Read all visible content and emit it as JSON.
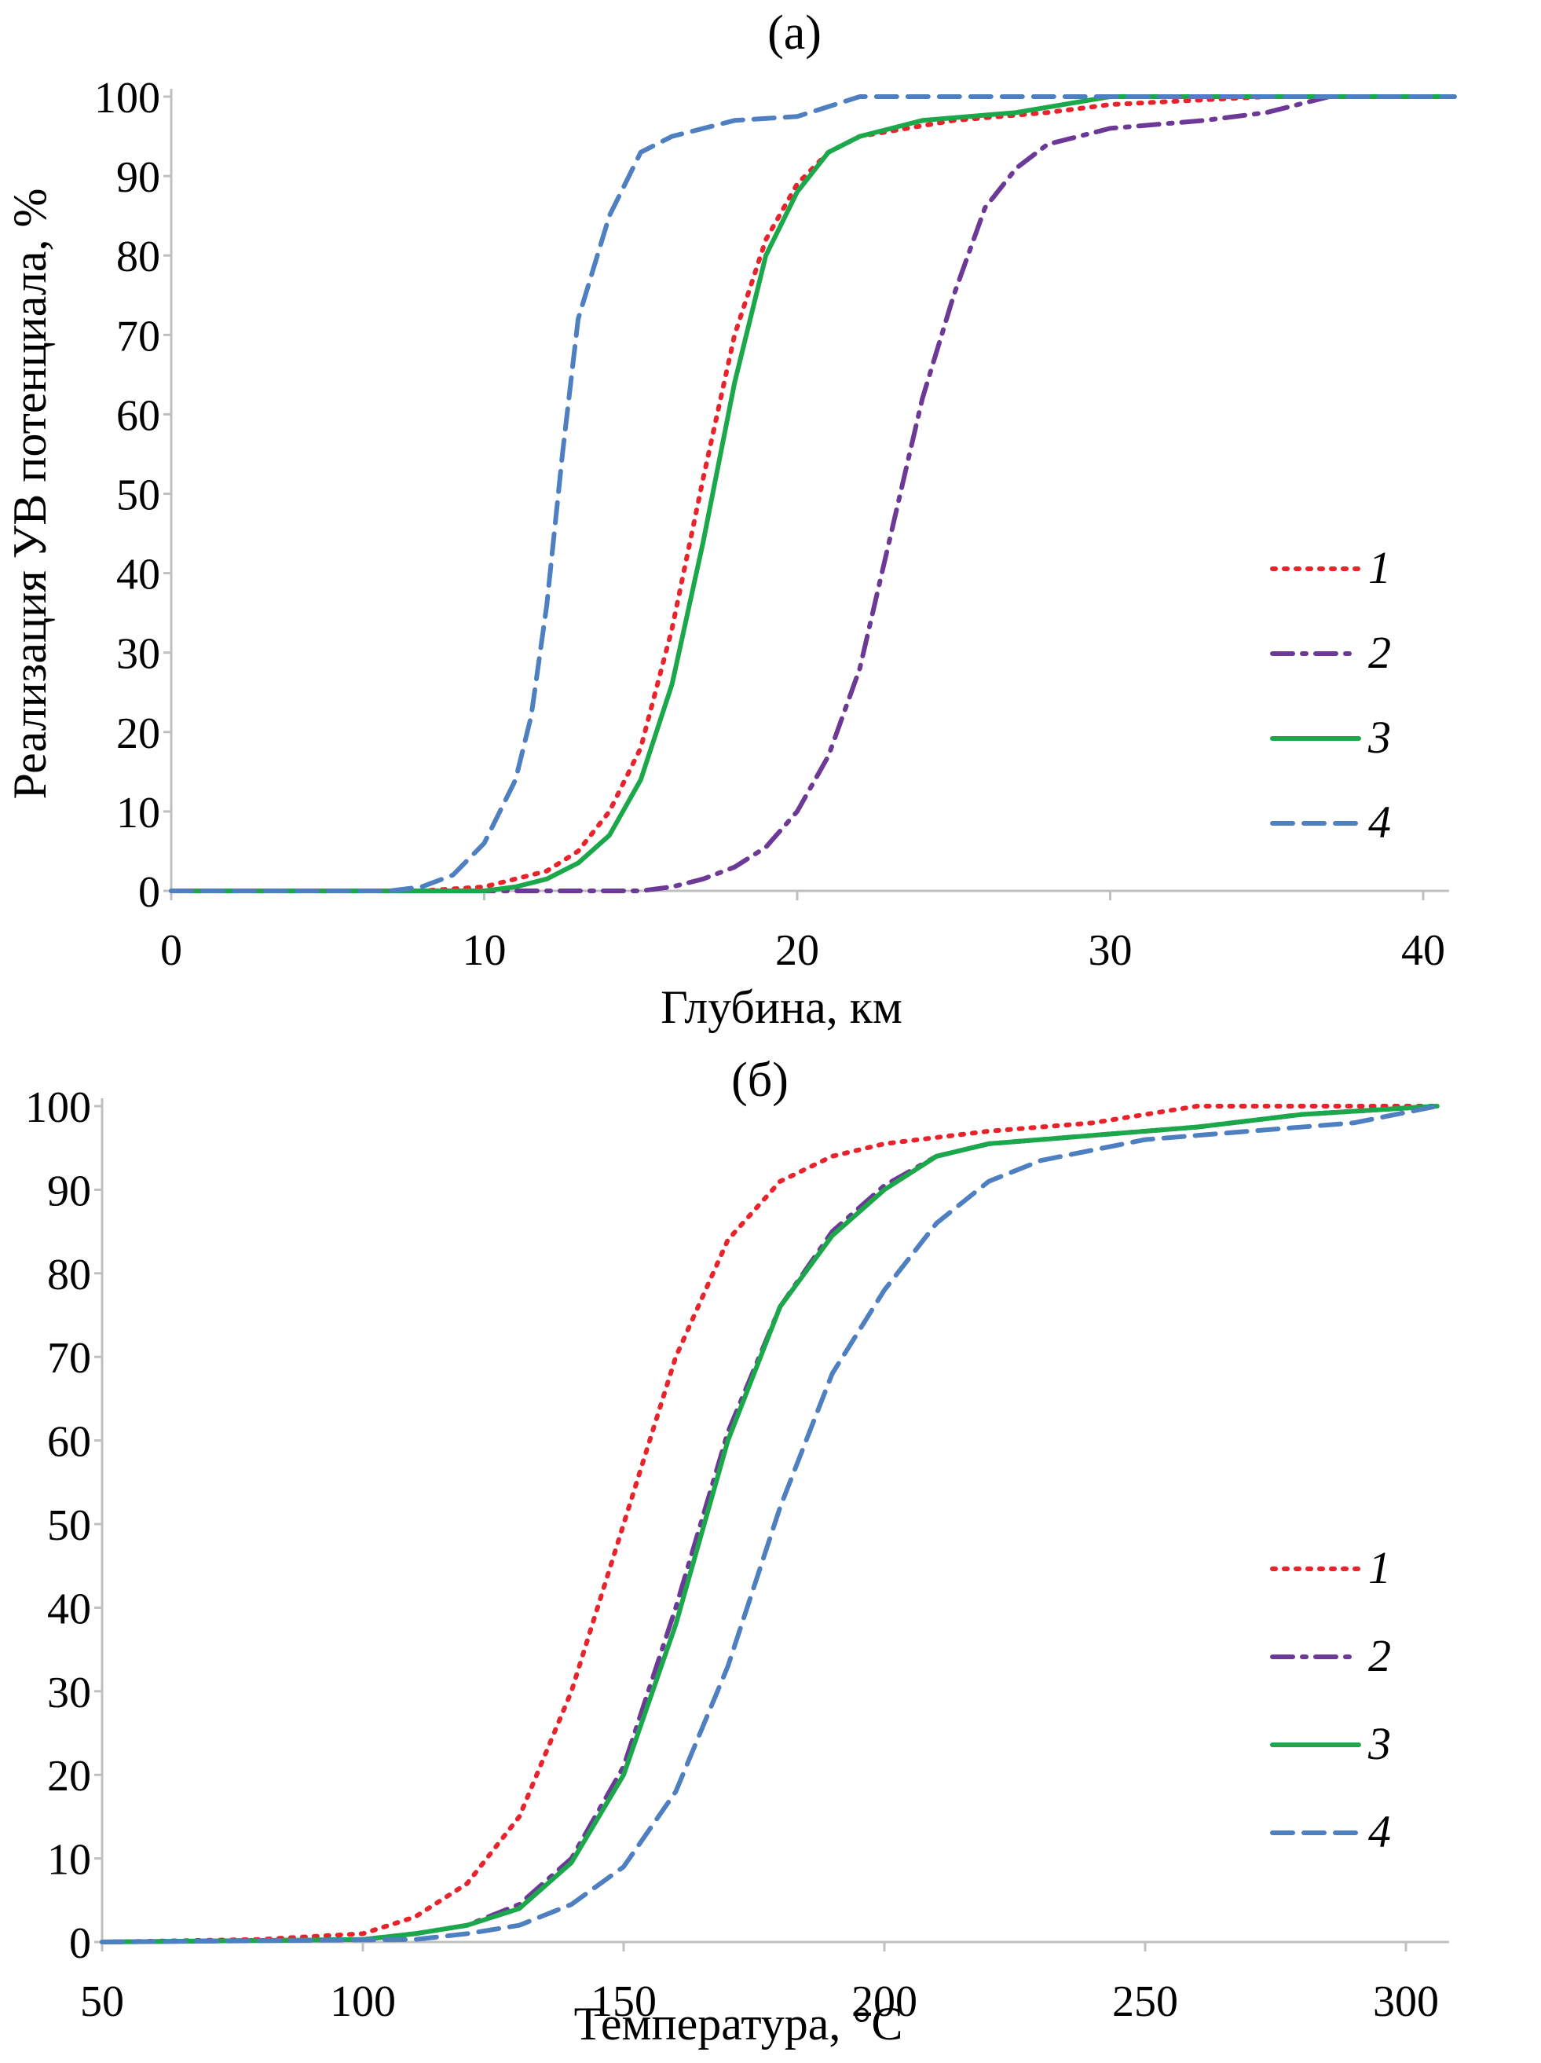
{
  "colors": {
    "series1": "#e8232b",
    "series2": "#6c3a96",
    "series3": "#1aa84a",
    "series4": "#4e7fc0",
    "axis": "#bfbfbf"
  },
  "chart_data": [
    {
      "id": "a",
      "type": "line",
      "title": "(а)",
      "xlabel": "Глубина, км",
      "ylabel": "Реализация УВ потенциала, %",
      "xlim": [
        0,
        40
      ],
      "ylim": [
        0,
        100
      ],
      "xticks": [
        0,
        10,
        20,
        30,
        40
      ],
      "yticks": [
        0,
        10,
        20,
        30,
        40,
        50,
        60,
        70,
        80,
        90,
        100
      ],
      "grid": false,
      "legend_position": "right",
      "series": [
        {
          "name": "1",
          "style": "dotted",
          "color_key": "series1",
          "points": [
            [
              0,
              0
            ],
            [
              8,
              0
            ],
            [
              10,
              0.5
            ],
            [
              12,
              2.5
            ],
            [
              13,
              5
            ],
            [
              14,
              10
            ],
            [
              15,
              18
            ],
            [
              16,
              33
            ],
            [
              17,
              52
            ],
            [
              18,
              70
            ],
            [
              19,
              82
            ],
            [
              20,
              89
            ],
            [
              21,
              93
            ],
            [
              22,
              95
            ],
            [
              25,
              97
            ],
            [
              28,
              98
            ],
            [
              30,
              99
            ],
            [
              35,
              100
            ],
            [
              41,
              100
            ]
          ]
        },
        {
          "name": "2",
          "style": "dashdot",
          "color_key": "series2",
          "points": [
            [
              0,
              0
            ],
            [
              15,
              0
            ],
            [
              16,
              0.5
            ],
            [
              17,
              1.5
            ],
            [
              18,
              3
            ],
            [
              19,
              5.5
            ],
            [
              20,
              10
            ],
            [
              21,
              17
            ],
            [
              22,
              28
            ],
            [
              23,
              45
            ],
            [
              24,
              62
            ],
            [
              25,
              75
            ],
            [
              26,
              86
            ],
            [
              27,
              91
            ],
            [
              28,
              94
            ],
            [
              30,
              96
            ],
            [
              33,
              97
            ],
            [
              35,
              98
            ],
            [
              37,
              100
            ],
            [
              41,
              100
            ]
          ]
        },
        {
          "name": "3",
          "style": "solid",
          "color_key": "series3",
          "points": [
            [
              0,
              0
            ],
            [
              10,
              0
            ],
            [
              11,
              0.5
            ],
            [
              12,
              1.5
            ],
            [
              13,
              3.5
            ],
            [
              14,
              7
            ],
            [
              15,
              14
            ],
            [
              16,
              26
            ],
            [
              17,
              44
            ],
            [
              18,
              64
            ],
            [
              19,
              80
            ],
            [
              20,
              88
            ],
            [
              21,
              93
            ],
            [
              22,
              95
            ],
            [
              24,
              97
            ],
            [
              27,
              98
            ],
            [
              30,
              100
            ],
            [
              41,
              100
            ]
          ]
        },
        {
          "name": "4",
          "style": "dashed",
          "color_key": "series4",
          "points": [
            [
              0,
              0
            ],
            [
              7,
              0
            ],
            [
              8,
              0.5
            ],
            [
              9,
              2
            ],
            [
              10,
              6
            ],
            [
              11,
              14
            ],
            [
              11.5,
              22
            ],
            [
              12,
              36
            ],
            [
              12.5,
              55
            ],
            [
              13,
              72
            ],
            [
              14,
              85
            ],
            [
              15,
              93
            ],
            [
              16,
              95
            ],
            [
              18,
              97
            ],
            [
              20,
              97.5
            ],
            [
              22,
              100
            ],
            [
              41,
              100
            ]
          ]
        }
      ]
    },
    {
      "id": "b",
      "type": "line",
      "title": "(б)",
      "xlabel": "Температура, °С",
      "ylabel": "",
      "xlim": [
        50,
        300
      ],
      "ylim": [
        0,
        100
      ],
      "xticks": [
        50,
        100,
        150,
        200,
        250,
        300
      ],
      "yticks": [
        0,
        10,
        20,
        30,
        40,
        50,
        60,
        70,
        80,
        90,
        100
      ],
      "grid": false,
      "legend_position": "right",
      "series": [
        {
          "name": "1",
          "style": "dotted",
          "color_key": "series1",
          "points": [
            [
              50,
              0
            ],
            [
              80,
              0.3
            ],
            [
              100,
              1
            ],
            [
              110,
              3
            ],
            [
              120,
              7
            ],
            [
              130,
              15
            ],
            [
              140,
              30
            ],
            [
              150,
              50
            ],
            [
              160,
              70
            ],
            [
              170,
              84
            ],
            [
              180,
              91
            ],
            [
              190,
              94
            ],
            [
              200,
              95.5
            ],
            [
              220,
              97
            ],
            [
              240,
              98
            ],
            [
              250,
              99
            ],
            [
              260,
              100
            ],
            [
              306,
              100
            ]
          ]
        },
        {
          "name": "2",
          "style": "dashdot",
          "color_key": "series2",
          "points": [
            [
              50,
              0
            ],
            [
              100,
              0.3
            ],
            [
              110,
              1
            ],
            [
              120,
              2
            ],
            [
              130,
              4.5
            ],
            [
              140,
              10
            ],
            [
              150,
              21
            ],
            [
              160,
              40
            ],
            [
              170,
              61
            ],
            [
              180,
              76
            ],
            [
              190,
              85
            ],
            [
              200,
              90.5
            ],
            [
              210,
              94
            ],
            [
              220,
              95.5
            ],
            [
              240,
              96.5
            ],
            [
              260,
              97.5
            ],
            [
              280,
              99
            ],
            [
              306,
              100
            ]
          ]
        },
        {
          "name": "3",
          "style": "solid",
          "color_key": "series3",
          "points": [
            [
              50,
              0
            ],
            [
              100,
              0.3
            ],
            [
              110,
              1
            ],
            [
              120,
              2
            ],
            [
              130,
              4
            ],
            [
              140,
              9.5
            ],
            [
              150,
              20
            ],
            [
              160,
              38
            ],
            [
              170,
              60
            ],
            [
              180,
              76
            ],
            [
              190,
              84.5
            ],
            [
              200,
              90
            ],
            [
              210,
              94
            ],
            [
              220,
              95.5
            ],
            [
              240,
              96.5
            ],
            [
              260,
              97.5
            ],
            [
              280,
              99
            ],
            [
              306,
              100
            ]
          ]
        },
        {
          "name": "4",
          "style": "dashed",
          "color_key": "series4",
          "points": [
            [
              50,
              0
            ],
            [
              110,
              0.3
            ],
            [
              120,
              1
            ],
            [
              130,
              2
            ],
            [
              140,
              4.5
            ],
            [
              150,
              9
            ],
            [
              160,
              18
            ],
            [
              170,
              33
            ],
            [
              180,
              52
            ],
            [
              190,
              68
            ],
            [
              200,
              78
            ],
            [
              210,
              86
            ],
            [
              220,
              91
            ],
            [
              230,
              93.5
            ],
            [
              250,
              96
            ],
            [
              270,
              97
            ],
            [
              290,
              98
            ],
            [
              306,
              100
            ]
          ]
        }
      ]
    }
  ]
}
